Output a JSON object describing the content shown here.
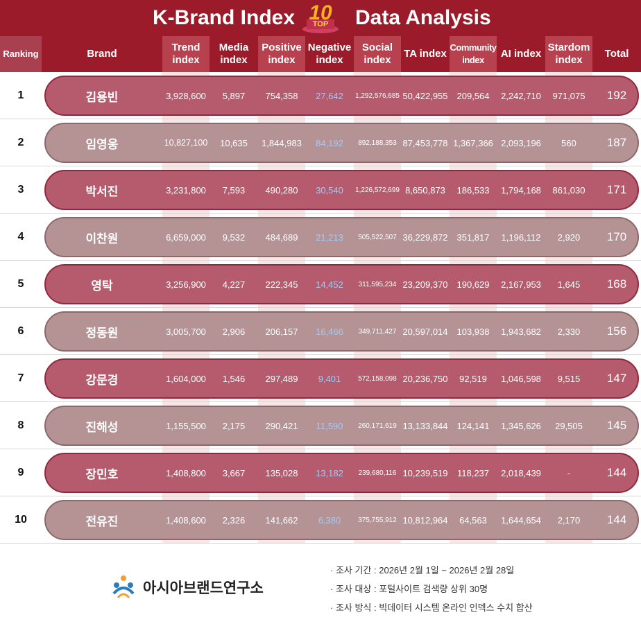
{
  "header": {
    "title_left": "K-Brand Index",
    "badge_number": "10",
    "badge_text": "TOP",
    "title_right": "Data Analysis"
  },
  "table": {
    "columns": [
      "Ranking",
      "Brand",
      "Trend index",
      "Media index",
      "Positive index",
      "Negative index",
      "Social index",
      "TA index",
      "Community index",
      "AI index",
      "Stardom index",
      "Total"
    ],
    "rows": [
      [
        "1",
        "김용빈",
        "3,928,600",
        "5,897",
        "754,358",
        "27,642",
        "1,292,576,685",
        "50,422,955",
        "209,564",
        "2,242,710",
        "971,075",
        "192"
      ],
      [
        "2",
        "임영웅",
        "10,827,100",
        "10,635",
        "1,844,983",
        "84,192",
        "892,188,353",
        "87,453,778",
        "1,367,366",
        "2,093,196",
        "560",
        "187"
      ],
      [
        "3",
        "박서진",
        "3,231,800",
        "7,593",
        "490,280",
        "30,540",
        "1,226,572,699",
        "8,650,873",
        "186,533",
        "1,794,168",
        "861,030",
        "171"
      ],
      [
        "4",
        "이찬원",
        "6,659,000",
        "9,532",
        "484,689",
        "21,213",
        "505,522,507",
        "36,229,872",
        "351,817",
        "1,196,112",
        "2,920",
        "170"
      ],
      [
        "5",
        "영탁",
        "3,256,900",
        "4,227",
        "222,345",
        "14,452",
        "311,595,234",
        "23,209,370",
        "190,629",
        "2,167,953",
        "1,645",
        "168"
      ],
      [
        "6",
        "정동원",
        "3,005,700",
        "2,906",
        "206,157",
        "16,466",
        "349,711,427",
        "20,597,014",
        "103,938",
        "1,943,682",
        "2,330",
        "156"
      ],
      [
        "7",
        "강문경",
        "1,604,000",
        "1,546",
        "297,489",
        "9,401",
        "572,158,098",
        "20,236,750",
        "92,519",
        "1,046,598",
        "9,515",
        "147"
      ],
      [
        "8",
        "진해성",
        "1,155,500",
        "2,175",
        "290,421",
        "11,590",
        "260,171,619",
        "13,133,844",
        "124,141",
        "1,345,626",
        "29,505",
        "145"
      ],
      [
        "9",
        "장민호",
        "1,408,800",
        "3,667",
        "135,028",
        "13,182",
        "239,680,116",
        "10,239,519",
        "118,237",
        "2,018,439",
        "-",
        "144"
      ],
      [
        "10",
        "전유진",
        "1,408,600",
        "2,326",
        "141,662",
        "6,380",
        "375,755,912",
        "10,812,964",
        "64,563",
        "1,644,654",
        "2,170",
        "144"
      ]
    ]
  },
  "footer": {
    "organization": "아시아브랜드연구소",
    "notes": [
      "· 조사 기간 : 2026년 2월 1일 ~ 2026년 2월 28일",
      "· 조사 대상 : 포털사이트 검색량 상위 30명",
      "· 조사 방식 : 빅데이터 시스템 온라인 인덱스 수치 합산"
    ]
  }
}
